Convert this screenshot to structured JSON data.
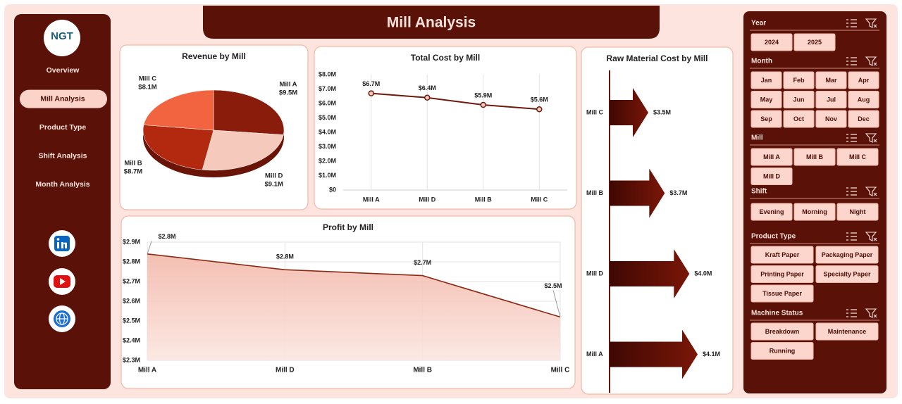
{
  "header": {
    "title": "Mill Analysis"
  },
  "sidebar": {
    "logo": "NGT",
    "nav": [
      "Overview",
      "Mill Analysis",
      "Product Type",
      "Shift Analysis",
      "Month Analysis"
    ]
  },
  "chart_data": [
    {
      "type": "pie",
      "title": "Revenue by Mill",
      "categories": [
        "Mill A",
        "Mill D",
        "Mill B",
        "Mill C"
      ],
      "values": [
        9.5,
        9.1,
        8.7,
        8.1
      ],
      "value_labels": [
        "$9.5M",
        "$9.1M",
        "$8.7M",
        "$8.1M"
      ],
      "colors": [
        "#8a1c0c",
        "#f6c9bd",
        "#b3290f",
        "#f2643f"
      ]
    },
    {
      "type": "line",
      "title": "Total Cost by Mill",
      "categories": [
        "Mill A",
        "Mill D",
        "Mill B",
        "Mill C"
      ],
      "values": [
        6.7,
        6.4,
        5.9,
        5.6
      ],
      "value_labels": [
        "$6.7M",
        "$6.4M",
        "$5.9M",
        "$5.6M"
      ],
      "color": "#6e1a0c",
      "ylim": [
        0,
        8
      ],
      "yticks": [
        {
          "value": 0,
          "label": "$0"
        },
        {
          "value": 1,
          "label": "$1.0M"
        },
        {
          "value": 2,
          "label": "$2.0M"
        },
        {
          "value": 3,
          "label": "$3.0M"
        },
        {
          "value": 4,
          "label": "$4.0M"
        },
        {
          "value": 5,
          "label": "$5.0M"
        },
        {
          "value": 6,
          "label": "$6.0M"
        },
        {
          "value": 7,
          "label": "$7.0M"
        },
        {
          "value": 8,
          "label": "$8.0M"
        }
      ],
      "grid": true
    },
    {
      "type": "barh",
      "title": "Raw Material Cost by Mill",
      "categories": [
        "Mill C",
        "Mill B",
        "Mill D",
        "Mill A"
      ],
      "values": [
        3.5,
        3.7,
        4.0,
        4.1
      ],
      "value_labels": [
        "$3.5M",
        "$3.7M",
        "$4.0M",
        "$4.1M"
      ],
      "color": "#6b1308"
    },
    {
      "type": "area",
      "title": "Profit by Mill",
      "categories": [
        "Mill A",
        "Mill D",
        "Mill B",
        "Mill C"
      ],
      "values": [
        2.84,
        2.76,
        2.73,
        2.52
      ],
      "value_labels": [
        "$2.8M",
        "$2.8M",
        "$2.7M",
        "$2.5M"
      ],
      "color": "#8b2a14",
      "ylim": [
        2.3,
        2.9
      ],
      "yticks": [
        {
          "value": 2.3,
          "label": "$2.3M"
        },
        {
          "value": 2.4,
          "label": "$2.4M"
        },
        {
          "value": 2.5,
          "label": "$2.5M"
        },
        {
          "value": 2.6,
          "label": "$2.6M"
        },
        {
          "value": 2.7,
          "label": "$2.7M"
        },
        {
          "value": 2.8,
          "label": "$2.8M"
        },
        {
          "value": 2.9,
          "label": "$2.9M"
        }
      ],
      "grid": true
    }
  ],
  "slicers": [
    {
      "title": "Year",
      "items": [
        "2024",
        "2025"
      ]
    },
    {
      "title": "Month",
      "items": [
        "Jan",
        "Feb",
        "Mar",
        "Apr",
        "May",
        "Jun",
        "Jul",
        "Aug",
        "Sep",
        "Oct",
        "Nov",
        "Dec"
      ]
    },
    {
      "title": "Mill",
      "items": [
        "Mill A",
        "Mill B",
        "Mill C",
        "Mill D"
      ]
    },
    {
      "title": "Shift",
      "items": [
        "Evening",
        "Morning",
        "Night"
      ]
    },
    {
      "title": "Product Type",
      "items": [
        "Kraft Paper",
        "Packaging Paper",
        "Printing Paper",
        "Specialty Paper",
        "Tissue Paper"
      ]
    },
    {
      "title": "Machine Status",
      "items": [
        "Breakdown",
        "Maintenance",
        "Running"
      ]
    }
  ]
}
